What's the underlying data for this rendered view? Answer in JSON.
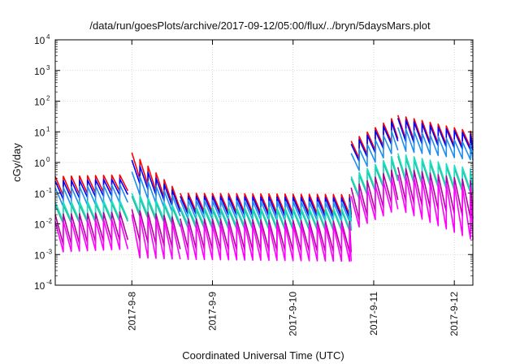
{
  "chart_data": {
    "type": "line",
    "title": "/data/run/goesPlots/archive/2017-09-12/05:00/flux/../bryn/5daysMars.plot",
    "xlabel": "Coordinated Universal Time (UTC)",
    "ylabel": "cGy/day",
    "x_tick_labels": [
      "2017-9-8",
      "2017-9-9",
      "2017-9-10",
      "2017-9-11",
      "2017-9-12"
    ],
    "x_range_days": [
      -0.95,
      4.23
    ],
    "y_scale": "log",
    "ylim": [
      0.0001,
      10000
    ],
    "y_tick_labels": [
      {
        "base": "10",
        "exp": "-4"
      },
      {
        "base": "10",
        "exp": "-3"
      },
      {
        "base": "10",
        "exp": "-2"
      },
      {
        "base": "10",
        "exp": "-1"
      },
      {
        "base": "10",
        "exp": "0"
      },
      {
        "base": "10",
        "exp": "1"
      },
      {
        "base": "10",
        "exp": "2"
      },
      {
        "base": "10",
        "exp": "3"
      },
      {
        "base": "10",
        "exp": "4"
      }
    ],
    "grid": true,
    "sawtooth_period_days": 0.1,
    "series": [
      {
        "color": "#ff0000",
        "segments": [
          {
            "x": [
              -0.95,
              -0.05
            ],
            "peak": [
              0.35,
              0.4
            ],
            "trough": [
              0.08,
              0.12
            ]
          },
          {
            "x": [
              0.0,
              0.6
            ],
            "peak": [
              2.1,
              0.1
            ],
            "trough": [
              0.45,
              0.03
            ]
          },
          {
            "x": [
              0.6,
              2.72
            ],
            "peak": [
              0.1,
              0.09
            ],
            "trough": [
              0.025,
              0.02
            ]
          },
          {
            "x": [
              2.72,
              3.3
            ],
            "peak": [
              5.0,
              35.0
            ],
            "trough": [
              1.0,
              6.0
            ]
          },
          {
            "x": [
              3.3,
              4.23
            ],
            "peak": [
              35.0,
              10.0
            ],
            "trough": [
              6.0,
              3.0
            ]
          }
        ]
      },
      {
        "color": "#0000ff",
        "segments": [
          {
            "x": [
              -0.95,
              -0.05
            ],
            "peak": [
              0.25,
              0.3
            ],
            "trough": [
              0.06,
              0.09
            ]
          },
          {
            "x": [
              0.0,
              0.6
            ],
            "peak": [
              1.2,
              0.08
            ],
            "trough": [
              0.3,
              0.025
            ]
          },
          {
            "x": [
              0.6,
              2.72
            ],
            "peak": [
              0.08,
              0.07
            ],
            "trough": [
              0.02,
              0.016
            ]
          },
          {
            "x": [
              2.72,
              3.3
            ],
            "peak": [
              4.0,
              28.0
            ],
            "trough": [
              0.8,
              5.0
            ]
          },
          {
            "x": [
              3.3,
              4.23
            ],
            "peak": [
              28.0,
              8.0
            ],
            "trough": [
              5.0,
              2.5
            ]
          }
        ]
      },
      {
        "color": "#1f8fef",
        "segments": [
          {
            "x": [
              -0.95,
              -0.05
            ],
            "peak": [
              0.15,
              0.2
            ],
            "trough": [
              0.035,
              0.05
            ]
          },
          {
            "x": [
              0.0,
              0.6
            ],
            "peak": [
              0.5,
              0.06
            ],
            "trough": [
              0.12,
              0.018
            ]
          },
          {
            "x": [
              0.6,
              2.72
            ],
            "peak": [
              0.06,
              0.05
            ],
            "trough": [
              0.014,
              0.012
            ]
          },
          {
            "x": [
              2.72,
              3.3
            ],
            "peak": [
              2.0,
              14.0
            ],
            "trough": [
              0.4,
              2.5
            ]
          },
          {
            "x": [
              3.3,
              4.23
            ],
            "peak": [
              14.0,
              4.0
            ],
            "trough": [
              2.5,
              1.2
            ]
          }
        ]
      },
      {
        "color": "#2fb39a",
        "segments": [
          {
            "x": [
              -0.95,
              -0.05
            ],
            "peak": [
              0.04,
              0.05
            ],
            "trough": [
              0.01,
              0.012
            ]
          },
          {
            "x": [
              0.0,
              0.6
            ],
            "peak": [
              0.08,
              0.03
            ],
            "trough": [
              0.02,
              0.008
            ]
          },
          {
            "x": [
              0.6,
              2.72
            ],
            "peak": [
              0.03,
              0.028
            ],
            "trough": [
              0.007,
              0.006
            ]
          },
          {
            "x": [
              2.72,
              3.3
            ],
            "peak": [
              0.3,
              1.6
            ],
            "trough": [
              0.05,
              0.25
            ]
          },
          {
            "x": [
              3.3,
              4.23
            ],
            "peak": [
              1.6,
              0.5
            ],
            "trough": [
              0.25,
              0.1
            ]
          }
        ]
      },
      {
        "color": "#18e0c0",
        "segments": [
          {
            "x": [
              -0.95,
              -0.05
            ],
            "peak": [
              0.05,
              0.06
            ],
            "trough": [
              0.012,
              0.014
            ]
          },
          {
            "x": [
              0.0,
              0.6
            ],
            "peak": [
              0.1,
              0.035
            ],
            "trough": [
              0.025,
              0.01
            ]
          },
          {
            "x": [
              0.6,
              2.72
            ],
            "peak": [
              0.035,
              0.032
            ],
            "trough": [
              0.009,
              0.007
            ]
          },
          {
            "x": [
              2.72,
              3.3
            ],
            "peak": [
              0.35,
              2.0
            ],
            "trough": [
              0.06,
              0.3
            ]
          },
          {
            "x": [
              3.3,
              4.23
            ],
            "peak": [
              2.0,
              0.6
            ],
            "trough": [
              0.3,
              0.12
            ]
          }
        ]
      },
      {
        "color": "#b4009e",
        "segments": [
          {
            "x": [
              -0.95,
              -0.05
            ],
            "peak": [
              0.02,
              0.025
            ],
            "trough": [
              0.002,
              0.003
            ]
          },
          {
            "x": [
              0.0,
              0.6
            ],
            "peak": [
              0.03,
              0.015
            ],
            "trough": [
              0.003,
              0.0015
            ]
          },
          {
            "x": [
              0.6,
              2.72
            ],
            "peak": [
              0.015,
              0.012
            ],
            "trough": [
              0.0015,
              0.0012
            ]
          },
          {
            "x": [
              2.72,
              3.3
            ],
            "peak": [
              0.15,
              0.7
            ],
            "trough": [
              0.01,
              0.06
            ]
          },
          {
            "x": [
              3.3,
              4.23
            ],
            "peak": [
              0.7,
              0.25
            ],
            "trough": [
              0.06,
              0.015
            ]
          }
        ]
      },
      {
        "color": "#ff00ff",
        "segments": [
          {
            "x": [
              -0.95,
              -0.05
            ],
            "peak": [
              0.012,
              0.015
            ],
            "trough": [
              0.0012,
              0.0015
            ]
          },
          {
            "x": [
              0.0,
              0.6
            ],
            "peak": [
              0.02,
              0.01
            ],
            "trough": [
              0.0008,
              0.0007
            ]
          },
          {
            "x": [
              0.6,
              2.72
            ],
            "peak": [
              0.01,
              0.009
            ],
            "trough": [
              0.0007,
              0.0006
            ]
          },
          {
            "x": [
              2.72,
              3.3
            ],
            "peak": [
              0.08,
              0.4
            ],
            "trough": [
              0.006,
              0.03
            ]
          },
          {
            "x": [
              3.3,
              4.23
            ],
            "peak": [
              0.4,
              0.15
            ],
            "trough": [
              0.03,
              0.003
            ]
          }
        ]
      }
    ]
  }
}
